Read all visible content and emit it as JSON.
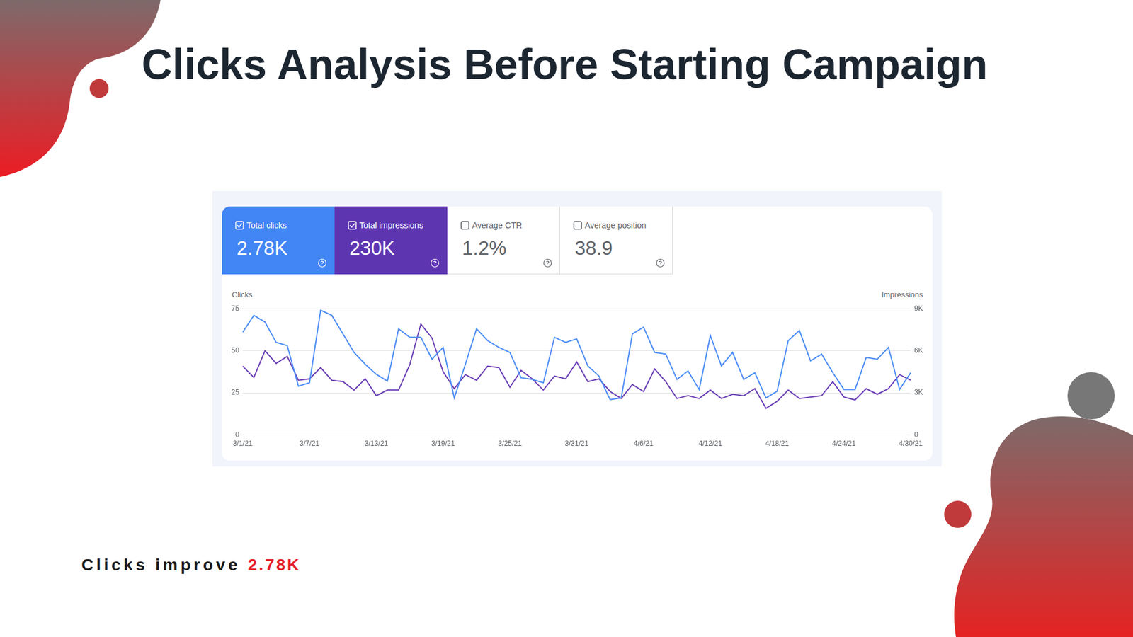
{
  "title": "Clicks Analysis Before Starting Campaign",
  "metrics": [
    {
      "label": "Total clicks",
      "value": 2780,
      "value_label": "2.78K",
      "color": "#4285f4"
    },
    {
      "label": "Total impressions",
      "value": 230000,
      "value_label": "230K",
      "color": "#5e35b1"
    },
    {
      "label": "Average CTR",
      "value": 1.2,
      "value_label": "1.2%"
    },
    {
      "label": "Average position",
      "value": 38.9
    }
  ],
  "chart_data": {
    "type": "line",
    "ylabel": "Clicks",
    "y2label": "Impressions",
    "categories": [
      "3/1/21",
      null,
      null,
      null,
      null,
      null,
      "3/7/21",
      null,
      null,
      null,
      null,
      null,
      "3/13/21",
      null,
      null,
      null,
      null,
      null,
      "3/19/21",
      null,
      null,
      null,
      null,
      null,
      "3/25/21",
      null,
      null,
      null,
      null,
      null,
      "3/31/21",
      null,
      null,
      null,
      null,
      null,
      "4/6/21",
      null,
      null,
      null,
      null,
      null,
      "4/12/21",
      null,
      null,
      null,
      null,
      null,
      "4/18/21",
      null,
      null,
      null,
      null,
      null,
      "4/24/21",
      null,
      null,
      null,
      null,
      null,
      "4/30/21"
    ],
    "series": [
      {
        "name": "Clicks",
        "color": "#4c8df6",
        "values": [
          61,
          71,
          67,
          55,
          53,
          29,
          31,
          74,
          71,
          60,
          49,
          42,
          36,
          32,
          63,
          58,
          58,
          45,
          52,
          22,
          42,
          63,
          56,
          52,
          49,
          34,
          33,
          31,
          58,
          55,
          57,
          41,
          35,
          21,
          22,
          60,
          64,
          49,
          48,
          33,
          38,
          27,
          59,
          41,
          49,
          33,
          37,
          22,
          26,
          56,
          62,
          44,
          48,
          37,
          27,
          27,
          46,
          45,
          52,
          27,
          37
        ]
      },
      {
        "name": "Impressions",
        "color": "#6a3fb5",
        "axis": "y2",
        "values": [
          4900,
          4100,
          6000,
          5100,
          5600,
          3900,
          4000,
          4800,
          3900,
          3800,
          3200,
          4000,
          2800,
          3200,
          3200,
          5000,
          7900,
          6900,
          4500,
          3300,
          4300,
          3900,
          4900,
          4800,
          3400,
          4600,
          4000,
          3200,
          4200,
          4000,
          5200,
          3800,
          4000,
          3100,
          2600,
          3600,
          3100,
          4700,
          3800,
          2600,
          2800,
          2600,
          3200,
          2600,
          2900,
          2800,
          3300,
          1900,
          2400,
          3200,
          2600,
          2700,
          2800,
          3800,
          2700,
          2500,
          3300,
          2900,
          3300,
          4300,
          3900
        ]
      }
    ],
    "ylim": [
      0,
      75
    ],
    "yticks": [
      0,
      25,
      50,
      75
    ],
    "y2lim": [
      0,
      9000
    ],
    "y2ticks": [
      0,
      {
        "value": 3000,
        "label": "3K"
      },
      {
        "value": 6000,
        "label": "6K"
      },
      {
        "value": 9000,
        "label": "9K"
      }
    ],
    "grid": true
  },
  "footer": {
    "text": "Clicks improve",
    "highlight": "2.78K"
  }
}
